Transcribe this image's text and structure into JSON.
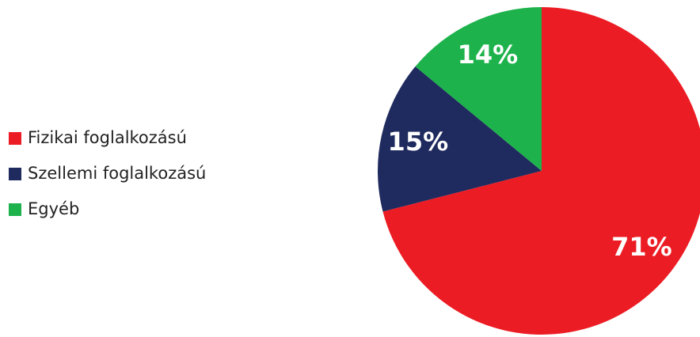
{
  "chart_data": {
    "type": "pie",
    "categories": [
      "Fizikai foglalkozású",
      "Szellemi foglalkozású",
      "Egyéb"
    ],
    "values": [
      71,
      15,
      14
    ],
    "value_labels": [
      "71%",
      "15%",
      "14%"
    ],
    "colors": [
      "#ec1c24",
      "#1f2a5e",
      "#1db24b"
    ]
  }
}
